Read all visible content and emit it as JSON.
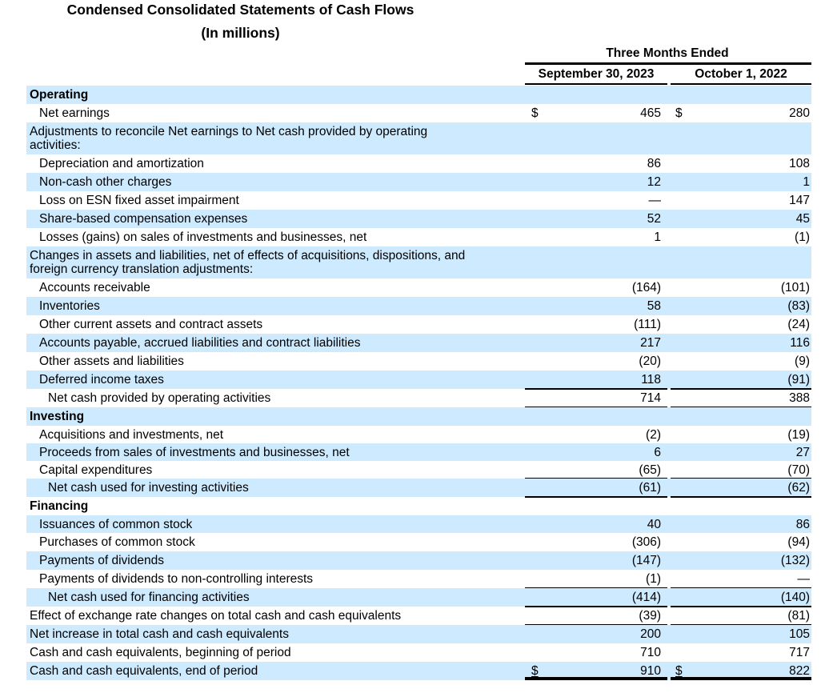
{
  "title": "Condensed Consolidated Statements of Cash Flows",
  "subtitle": "(In millions)",
  "header": {
    "group": "Three Months Ended",
    "col1": "September 30, 2023",
    "col2": "October 1, 2022"
  },
  "rows": [
    {
      "label": "Operating",
      "bold": true,
      "indent": 0,
      "v1": "",
      "v2": "",
      "shaded": true,
      "h": 23
    },
    {
      "label": "Net earnings",
      "indent": 1,
      "v1": "465",
      "v2": "280",
      "dollar": true,
      "shaded": false,
      "h": 23
    },
    {
      "label": "Adjustments to reconcile Net earnings to Net cash provided by operating\nactivities:",
      "indent": 0,
      "v1": "",
      "v2": "",
      "shaded": true,
      "h": 40
    },
    {
      "label": "Depreciation and amortization",
      "indent": 1,
      "v1": "86",
      "v2": "108",
      "shaded": false,
      "h": 23
    },
    {
      "label": "Non-cash other charges",
      "indent": 1,
      "v1": "12",
      "v2": "1",
      "shaded": true,
      "h": 23
    },
    {
      "label": "Loss on ESN fixed asset impairment",
      "indent": 1,
      "v1": "—",
      "v2": "147",
      "shaded": false,
      "h": 23
    },
    {
      "label": "Share-based compensation expenses",
      "indent": 1,
      "v1": "52",
      "v2": "45",
      "shaded": true,
      "h": 23
    },
    {
      "label": "Losses (gains) on sales of investments and businesses, net",
      "indent": 1,
      "v1": "1",
      "v2": "(1)",
      "shaded": false,
      "h": 23
    },
    {
      "label": "Changes in assets and liabilities, net of effects of acquisitions, dispositions, and\nforeign currency translation adjustments:",
      "indent": 0,
      "v1": "",
      "v2": "",
      "shaded": true,
      "h": 40
    },
    {
      "label": "Accounts receivable",
      "indent": 1,
      "v1": "(164)",
      "v2": "(101)",
      "shaded": false,
      "h": 23
    },
    {
      "label": "Inventories",
      "indent": 1,
      "v1": "58",
      "v2": "(83)",
      "shaded": true,
      "h": 23
    },
    {
      "label": "Other current assets and contract assets",
      "indent": 1,
      "v1": "(111)",
      "v2": "(24)",
      "shaded": false,
      "h": 23
    },
    {
      "label": "Accounts payable, accrued liabilities and contract liabilities",
      "indent": 1,
      "v1": "217",
      "v2": "116",
      "shaded": true,
      "h": 23
    },
    {
      "label": "Other assets and liabilities",
      "indent": 1,
      "v1": "(20)",
      "v2": "(9)",
      "shaded": false,
      "h": 23
    },
    {
      "label": "Deferred income taxes",
      "indent": 1,
      "v1": "118",
      "v2": "(91)",
      "shaded": true,
      "h": 23,
      "rule": "single"
    },
    {
      "label": "Net cash provided by operating activities",
      "indent": 2,
      "v1": "714",
      "v2": "388",
      "shaded": false,
      "h": 23,
      "rule": "single"
    },
    {
      "label": "Investing",
      "bold": true,
      "indent": 0,
      "v1": "",
      "v2": "",
      "shaded": true,
      "h": 23
    },
    {
      "label": "Acquisitions and investments, net",
      "indent": 1,
      "v1": "(2)",
      "v2": "(19)",
      "shaded": false,
      "h": 22
    },
    {
      "label": "Proceeds from sales of investments and businesses, net",
      "indent": 1,
      "v1": "6",
      "v2": "27",
      "shaded": true,
      "h": 22
    },
    {
      "label": "Capital expenditures",
      "indent": 1,
      "v1": "(65)",
      "v2": "(70)",
      "shaded": false,
      "h": 22,
      "rule": "single"
    },
    {
      "label": "Net cash used for investing activities",
      "indent": 2,
      "v1": "(61)",
      "v2": "(62)",
      "shaded": true,
      "h": 23,
      "rule": "single"
    },
    {
      "label": "Financing",
      "bold": true,
      "indent": 0,
      "v1": "",
      "v2": "",
      "shaded": false,
      "h": 23
    },
    {
      "label": "Issuances of common stock",
      "indent": 1,
      "v1": "40",
      "v2": "86",
      "shaded": true,
      "h": 22
    },
    {
      "label": "Purchases of common stock",
      "indent": 1,
      "v1": "(306)",
      "v2": "(94)",
      "shaded": false,
      "h": 23
    },
    {
      "label": "Payments of dividends",
      "indent": 1,
      "v1": "(147)",
      "v2": "(132)",
      "shaded": true,
      "h": 23
    },
    {
      "label": "Payments of dividends to non-controlling interests",
      "indent": 1,
      "v1": "(1)",
      "v2": "—",
      "shaded": false,
      "h": 23,
      "rule": "single"
    },
    {
      "label": "Net cash used for financing activities",
      "indent": 2,
      "v1": "(414)",
      "v2": "(140)",
      "shaded": true,
      "h": 23,
      "rule": "single"
    },
    {
      "label": "Effect of exchange rate changes on total cash and cash equivalents",
      "indent": 0,
      "v1": "(39)",
      "v2": "(81)",
      "shaded": false,
      "h": 23,
      "rule": "single"
    },
    {
      "label": "Net increase in total cash and cash equivalents",
      "indent": 0,
      "v1": "200",
      "v2": "105",
      "shaded": true,
      "h": 23
    },
    {
      "label": "Cash and cash equivalents, beginning of period",
      "indent": 0,
      "v1": "710",
      "v2": "717",
      "shaded": false,
      "h": 23
    },
    {
      "label": "Cash and cash equivalents, end of period",
      "indent": 0,
      "v1": "910",
      "v2": "822",
      "dollar": true,
      "shaded": true,
      "h": 23,
      "rule": "double"
    }
  ],
  "currency_symbol": "$"
}
